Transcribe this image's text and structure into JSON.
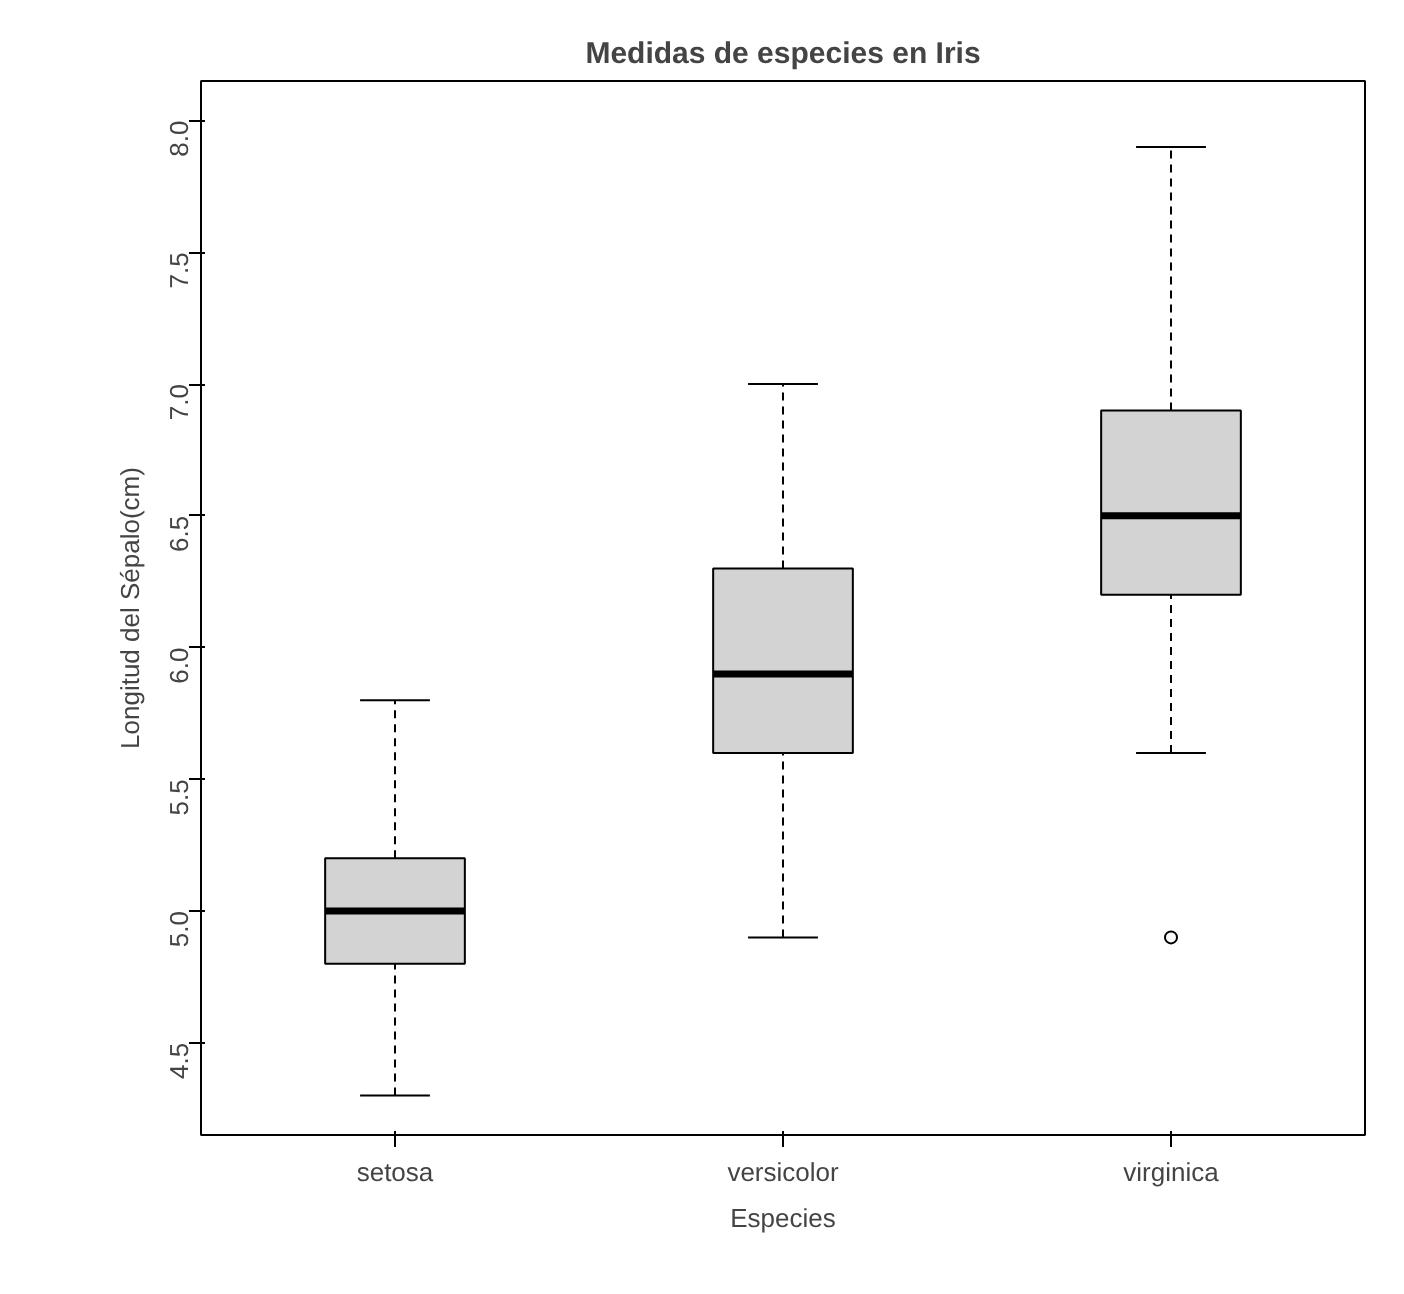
{
  "chart_data": {
    "type": "box",
    "title": "Medidas de especies en Iris",
    "xlabel": "Especies",
    "ylabel": "Longitud del Sépalo(cm)",
    "categories": [
      "setosa",
      "versicolor",
      "virginica"
    ],
    "boxes": [
      {
        "low": 4.3,
        "q1": 4.8,
        "median": 5.0,
        "q3": 5.2,
        "high": 5.8
      },
      {
        "low": 4.9,
        "q1": 5.6,
        "median": 5.9,
        "q3": 6.3,
        "high": 7.0
      },
      {
        "low": 5.6,
        "q1": 6.2,
        "median": 6.5,
        "q3": 6.9,
        "high": 7.9,
        "outliers": [
          4.9
        ]
      }
    ],
    "color": "#d3d3d3",
    "ylim": [
      4.15,
      8.15
    ],
    "yticks": [
      {
        "value": 4.5,
        "label": "4.5"
      },
      {
        "value": 5.0,
        "label": "5.0"
      },
      {
        "value": 5.5,
        "label": "5.5"
      },
      {
        "value": 6.0,
        "label": "6.0"
      },
      {
        "value": 6.5,
        "label": "6.5"
      },
      {
        "value": 7.0,
        "label": "7.0"
      },
      {
        "value": 7.5,
        "label": "7.5"
      },
      {
        "value": 8.0,
        "label": "8.0"
      }
    ],
    "grid": false
  }
}
